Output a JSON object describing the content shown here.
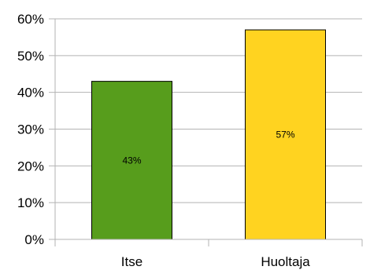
{
  "chart_data": {
    "type": "bar",
    "categories": [
      "Itse",
      "Huoltaja"
    ],
    "values": [
      43,
      57
    ],
    "data_labels": [
      "43%",
      "57%"
    ],
    "colors": [
      "#579d1c",
      "#ffd320"
    ],
    "ylim": [
      0,
      60
    ],
    "y_ticks": [
      0,
      10,
      20,
      30,
      40,
      50,
      60
    ],
    "y_tick_labels": [
      "0%",
      "10%",
      "20%",
      "30%",
      "40%",
      "50%",
      "60%"
    ],
    "grid": true,
    "legend": false
  }
}
